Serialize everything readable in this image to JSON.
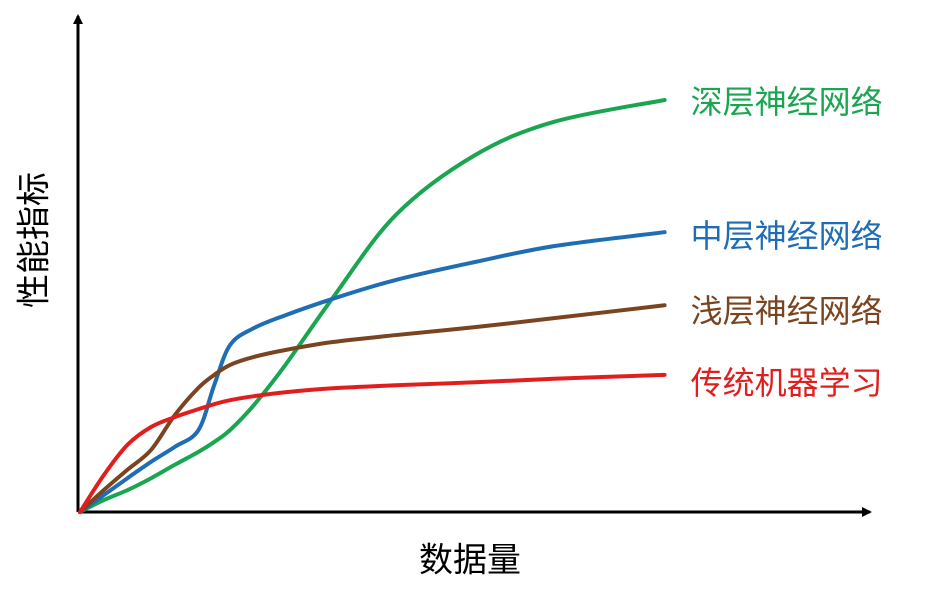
{
  "chart_data": {
    "type": "line",
    "x_label": "数据量",
    "y_label": "性能指标",
    "xlim": [
      0,
      100
    ],
    "ylim": [
      0,
      100
    ],
    "x": [
      0,
      3,
      6,
      9,
      12,
      15,
      17,
      19,
      22,
      26,
      32,
      40,
      50,
      60,
      74
    ],
    "series": [
      {
        "name": "深层神经网络",
        "color": "#1aa650",
        "values": [
          0,
          2.4,
          4.4,
          6.8,
          9.5,
          12.1,
          14.1,
          16.5,
          21.5,
          29.6,
          43.1,
          59.8,
          71.8,
          78.5,
          82.9
        ]
      },
      {
        "name": "中层神经网络",
        "color": "#1f6db4",
        "values": [
          0,
          3.4,
          6.8,
          10.1,
          13.1,
          16.5,
          25.6,
          33.6,
          37,
          39.6,
          42.9,
          46.7,
          50.3,
          53.5,
          56.3
        ]
      },
      {
        "name": "浅层神经网络",
        "color": "#7a4420",
        "values": [
          0,
          4.4,
          8.5,
          12.5,
          19.5,
          25,
          27.6,
          29.6,
          31.2,
          32.6,
          34.2,
          35.6,
          37.2,
          39,
          41.6
        ]
      },
      {
        "name": "传统机器学习",
        "color": "#e01e1e",
        "values": [
          0,
          7.4,
          13.5,
          17.1,
          19.1,
          20.7,
          21.7,
          22.5,
          23.3,
          24.1,
          24.9,
          25.5,
          26.1,
          26.8,
          27.6
        ]
      }
    ]
  }
}
